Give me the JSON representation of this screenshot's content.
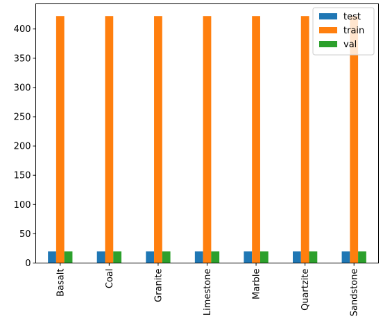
{
  "chart_data": {
    "type": "bar",
    "title": "",
    "xlabel": "",
    "ylabel": "",
    "categories": [
      "Basalt",
      "Coal",
      "Granite",
      "Limestone",
      "Marble",
      "Quartzite",
      "Sandstone"
    ],
    "series": [
      {
        "name": "test",
        "color": "#1f77b4",
        "values": [
          20,
          20,
          20,
          20,
          20,
          20,
          20
        ]
      },
      {
        "name": "train",
        "color": "#ff7f0e",
        "values": [
          422,
          422,
          422,
          422,
          422,
          422,
          422
        ]
      },
      {
        "name": "val",
        "color": "#2ca02c",
        "values": [
          20,
          20,
          20,
          20,
          20,
          20,
          20
        ]
      }
    ],
    "ylim": [
      0,
      443
    ],
    "yticks": [
      0,
      50,
      100,
      150,
      200,
      250,
      300,
      350,
      400
    ],
    "legend_position": "top-right",
    "grid": false
  }
}
